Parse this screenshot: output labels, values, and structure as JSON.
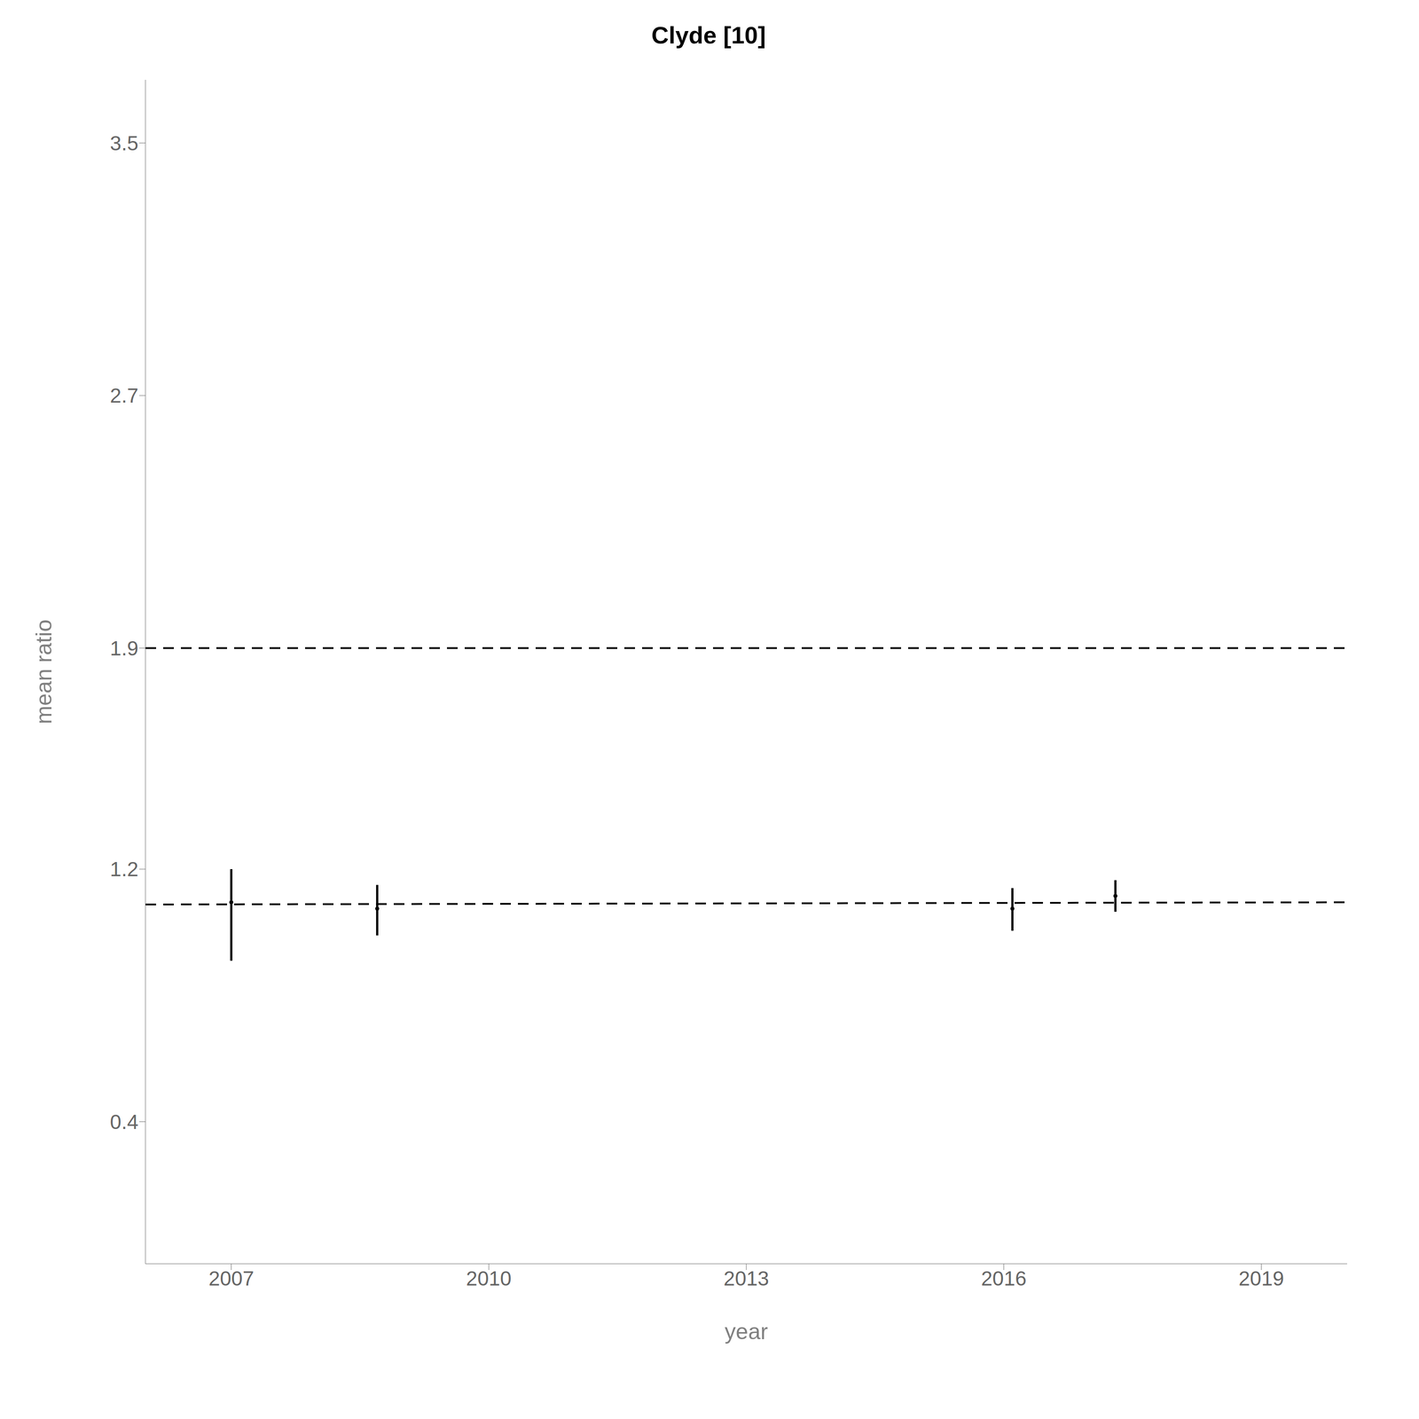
{
  "chart_data": {
    "type": "scatter",
    "title": "Clyde  [10]",
    "xlabel": "year",
    "ylabel": "mean ratio",
    "xlim": [
      2006.0,
      2020.0
    ],
    "ylim": [
      -0.05,
      3.7
    ],
    "xticks": [
      2007,
      2010,
      2013,
      2016,
      2019
    ],
    "yticks": [
      0.4,
      1.2,
      1.9,
      2.7,
      3.5
    ],
    "x": [
      2007.0,
      2008.7,
      2016.1,
      2017.3
    ],
    "values": [
      1.095,
      1.075,
      1.075,
      1.115
    ],
    "yerr_low": [
      0.185,
      0.085,
      0.07,
      0.05
    ],
    "yerr_high": [
      0.105,
      0.075,
      0.065,
      0.05
    ],
    "color": "#000000",
    "marker": "circle",
    "hline": {
      "y": 1.9,
      "color": "#000000",
      "line_style": "dashed"
    },
    "trend_line": {
      "x": [
        2006.0,
        2020.0
      ],
      "y": [
        1.088,
        1.095
      ],
      "color": "#000000",
      "line_style": "dashed"
    }
  }
}
